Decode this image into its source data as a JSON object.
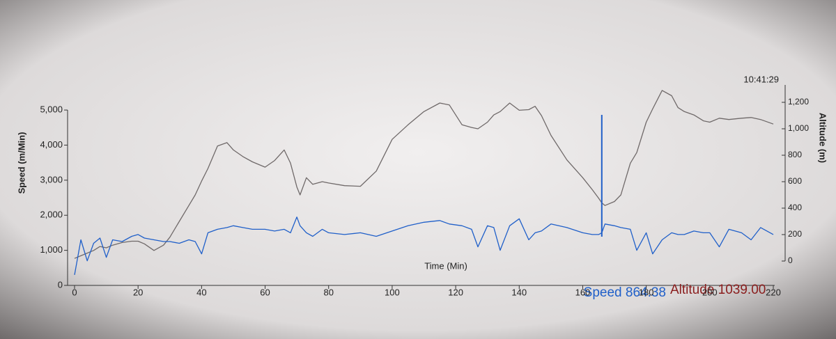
{
  "chart_data": {
    "type": "line",
    "xlabel": "Time (Min)",
    "ylabel": "Speed (m/Min)",
    "y2label": "Altitude (m)",
    "clock": "10:41:29",
    "readout": [
      "Speed 864.38",
      "Altitude 1039.00"
    ],
    "cursor_x": 166,
    "x": [
      0,
      2,
      4,
      6,
      8,
      10,
      12,
      15,
      18,
      20,
      22,
      25,
      28,
      30,
      33,
      36,
      38,
      40,
      42,
      45,
      48,
      50,
      53,
      56,
      60,
      63,
      66,
      68,
      70,
      71,
      73,
      75,
      78,
      80,
      85,
      90,
      95,
      100,
      105,
      110,
      115,
      118,
      122,
      125,
      127,
      130,
      132,
      134,
      137,
      140,
      143,
      145,
      147,
      150,
      155,
      160,
      163,
      165,
      166,
      167,
      170,
      172,
      175,
      177,
      180,
      182,
      185,
      188,
      190,
      192,
      195,
      198,
      200,
      203,
      206,
      210,
      213,
      216,
      220
    ],
    "series": [
      {
        "name": "Speed",
        "color": "#1f5fc9",
        "axis": "y",
        "values": [
          300,
          1300,
          700,
          1200,
          1350,
          800,
          1300,
          1250,
          1400,
          1450,
          1350,
          1300,
          1250,
          1250,
          1200,
          1300,
          1250,
          900,
          1500,
          1600,
          1650,
          1700,
          1650,
          1600,
          1600,
          1550,
          1600,
          1500,
          1950,
          1700,
          1500,
          1400,
          1600,
          1500,
          1450,
          1500,
          1400,
          1550,
          1700,
          1800,
          1850,
          1750,
          1700,
          1600,
          1100,
          1700,
          1650,
          1000,
          1700,
          1900,
          1300,
          1500,
          1550,
          1750,
          1650,
          1500,
          1450,
          1450,
          1500,
          1750,
          1700,
          1650,
          1600,
          1000,
          1500,
          900,
          1300,
          1500,
          1450,
          1450,
          1550,
          1500,
          1500,
          1100,
          1600,
          1500,
          1300,
          1650,
          1450
        ]
      },
      {
        "name": "Altitude",
        "color": "#6f6969",
        "axis": "y2",
        "values": [
          20,
          40,
          60,
          80,
          110,
          100,
          120,
          140,
          150,
          150,
          130,
          80,
          120,
          180,
          300,
          420,
          500,
          605,
          700,
          870,
          895,
          840,
          790,
          750,
          710,
          760,
          840,
          740,
          560,
          500,
          630,
          580,
          600,
          590,
          570,
          565,
          680,
          920,
          1030,
          1130,
          1195,
          1180,
          1030,
          1010,
          1000,
          1050,
          1105,
          1130,
          1195,
          1140,
          1145,
          1170,
          1100,
          950,
          765,
          630,
          540,
          475,
          440,
          420,
          450,
          500,
          740,
          820,
          1050,
          1150,
          1290,
          1250,
          1160,
          1130,
          1105,
          1060,
          1050,
          1080,
          1070,
          1080,
          1085,
          1070,
          1036
        ]
      }
    ],
    "xlim": [
      0,
      220
    ],
    "xticks": [
      0,
      20,
      40,
      60,
      80,
      100,
      120,
      140,
      160,
      180,
      200,
      220
    ],
    "ylim": [
      0,
      5200
    ],
    "yticks": [
      0,
      {
        "value": 1000,
        "label": "1,000"
      },
      {
        "value": 2000,
        "label": "2,000"
      },
      {
        "value": 3000,
        "label": "3,000"
      },
      {
        "value": 4000,
        "label": "4,000"
      },
      {
        "value": 5000,
        "label": "5,000"
      }
    ],
    "y2lim": [
      0,
      1300
    ],
    "y2ticks": [
      0,
      200,
      400,
      600,
      800,
      {
        "value": 1000,
        "label": "1,000"
      },
      {
        "value": 1200,
        "label": "1,200"
      }
    ]
  }
}
